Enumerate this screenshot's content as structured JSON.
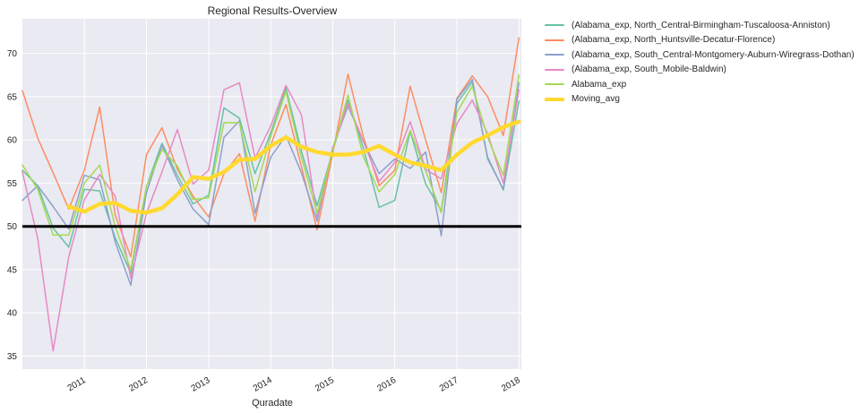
{
  "chart_data": {
    "type": "line",
    "title": "Regional Results-Overview",
    "xlabel": "Quradate",
    "ylabel": "",
    "xlim": [
      "2010-01-01",
      "2018-01-15"
    ],
    "ylim": [
      33.5,
      74.0
    ],
    "yticks": [
      35,
      40,
      45,
      50,
      55,
      60,
      65,
      70
    ],
    "xtick_labels": [
      "2011",
      "2012",
      "2013",
      "2014",
      "2015",
      "2016",
      "2017",
      "2018"
    ],
    "x": [
      "2010-01",
      "2010-04",
      "2010-07",
      "2010-10",
      "2011-01",
      "2011-04",
      "2011-07",
      "2011-10",
      "2012-01",
      "2012-04",
      "2012-07",
      "2012-10",
      "2013-01",
      "2013-04",
      "2013-07",
      "2013-10",
      "2014-01",
      "2014-04",
      "2014-07",
      "2014-10",
      "2015-01",
      "2015-04",
      "2015-07",
      "2015-10",
      "2016-01",
      "2016-04",
      "2016-07",
      "2016-10",
      "2017-01",
      "2017-04",
      "2017-07",
      "2017-10",
      "2018-01"
    ],
    "series": [
      {
        "name": "(Alabama_exp, North_Central-Birmingham-Tuscaloosa-Anniston)",
        "color": "#66c2a5",
        "linewidth": 1.5,
        "values": [
          56.5,
          54.7,
          49.8,
          47.6,
          54.3,
          54.1,
          48.7,
          44.6,
          54.6,
          59.6,
          55.9,
          52.6,
          53.6,
          63.7,
          62.5,
          56.1,
          60.8,
          66.0,
          58.7,
          52.4,
          58.7,
          64.6,
          59.0,
          52.2,
          53.0,
          61.0,
          54.9,
          51.8,
          64.2,
          66.7,
          58.0,
          54.2,
          64.5
        ]
      },
      {
        "name": "(Alabama_exp, North_Huntsville-Decatur-Florence)",
        "color": "#fc8d62",
        "linewidth": 1.5,
        "values": [
          65.7,
          60.2,
          56.2,
          52.0,
          56.5,
          63.8,
          51.3,
          46.5,
          58.3,
          61.4,
          56.6,
          53.5,
          51.1,
          56.1,
          58.4,
          50.6,
          59.4,
          64.1,
          56.9,
          49.6,
          58.4,
          67.6,
          60.3,
          54.7,
          56.5,
          66.2,
          60.0,
          53.9,
          64.8,
          67.4,
          65.0,
          60.5,
          71.8
        ]
      },
      {
        "name": "(Alabama_exp, South_Central-Montgomery-Auburn-Wiregrass-Dothan)",
        "color": "#8da0cb",
        "linewidth": 1.5,
        "values": [
          53.0,
          54.7,
          52.3,
          49.7,
          55.9,
          55.4,
          48.2,
          43.2,
          53.9,
          59.4,
          55.4,
          52.0,
          50.2,
          60.3,
          62.2,
          51.5,
          58.0,
          60.5,
          56.2,
          50.6,
          59.1,
          63.9,
          59.8,
          56.1,
          57.8,
          56.7,
          58.6,
          48.9,
          64.7,
          67.0,
          57.8,
          54.3,
          66.6
        ]
      },
      {
        "name": "(Alabama_exp, South_Mobile-Baldwin)",
        "color": "#e78ac3",
        "linewidth": 1.5,
        "values": [
          56.3,
          48.6,
          35.6,
          46.5,
          53.1,
          56.0,
          53.5,
          44.0,
          51.5,
          56.3,
          61.2,
          54.9,
          56.5,
          65.8,
          66.6,
          57.9,
          61.6,
          66.3,
          62.9,
          51.1,
          59.0,
          64.2,
          59.8,
          55.2,
          57.4,
          62.1,
          56.6,
          55.5,
          61.9,
          64.6,
          60.7,
          55.0,
          65.8
        ]
      },
      {
        "name": "Alabama_exp",
        "color": "#a6d854",
        "linewidth": 1.5,
        "values": [
          57.1,
          54.3,
          49.0,
          49.0,
          55.0,
          57.1,
          50.0,
          45.0,
          54.6,
          58.9,
          57.0,
          53.1,
          53.3,
          62.0,
          62.0,
          54.0,
          60.4,
          65.6,
          58.0,
          51.5,
          58.8,
          65.2,
          58.0,
          54.0,
          56.0,
          61.1,
          56.4,
          51.6,
          63.2,
          66.2,
          60.3,
          55.9,
          67.5
        ]
      },
      {
        "name": "Moving_avg",
        "color": "#ffd92f",
        "linewidth": 4.5,
        "start_index": 3,
        "values": [
          null,
          null,
          null,
          52.3,
          51.7,
          52.6,
          52.7,
          51.8,
          51.6,
          52.1,
          53.7,
          55.7,
          55.5,
          56.3,
          57.7,
          57.8,
          59.3,
          60.3,
          59.2,
          58.6,
          58.3,
          58.3,
          58.6,
          59.3,
          58.3,
          57.4,
          57.0,
          56.5,
          58.3,
          59.7,
          60.5,
          61.5,
          62.1
        ]
      }
    ],
    "reference_line": {
      "y": 50,
      "color": "#000000"
    },
    "legend_position": "outside-right",
    "grid": true,
    "background": "#eaeaf2"
  }
}
